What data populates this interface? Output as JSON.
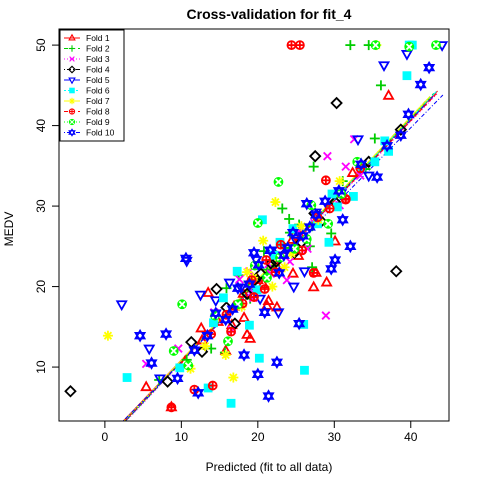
{
  "chart_data": {
    "type": "scatter",
    "title": "Cross-validation for fit_4",
    "xlabel": "Predicted (fit to all data)",
    "ylabel": "MEDV",
    "xlim": [
      -6,
      45
    ],
    "ylim": [
      3.3,
      52
    ],
    "xticks": [
      0,
      10,
      20,
      30,
      40
    ],
    "yticks": [
      10,
      20,
      30,
      40,
      50
    ],
    "grid": false,
    "legend_position": "top-left",
    "series": [
      {
        "name": "Fold 1",
        "color": "#ff0000",
        "marker": "triangle-up",
        "line": "solid",
        "fitline": [
          [
            2.4,
            3.3
          ],
          [
            43.5,
            44.3
          ]
        ],
        "points": [
          [
            15.8,
            12
          ],
          [
            18.6,
            14
          ],
          [
            21.2,
            17.6
          ],
          [
            27.6,
            21.7
          ],
          [
            29,
            20.5
          ],
          [
            30.1,
            25.6
          ],
          [
            12.7,
            13.3
          ],
          [
            16.6,
            15.2
          ],
          [
            22.6,
            22.3
          ],
          [
            10.5,
            10.7
          ],
          [
            5.4,
            7.5
          ],
          [
            8.7,
            5
          ],
          [
            19.2,
            21.1
          ],
          [
            25.6,
            26.2
          ],
          [
            13.5,
            19.2
          ],
          [
            20,
            20.8
          ],
          [
            24.5,
            25.8
          ],
          [
            37.1,
            43.7
          ],
          [
            32.4,
            34.1
          ],
          [
            25.3,
            23.8
          ],
          [
            16.9,
            17.5
          ],
          [
            20.7,
            20.3
          ],
          [
            18.1,
            19.1
          ],
          [
            12.6,
            14.8
          ],
          [
            27.3,
            19.9
          ],
          [
            22.5,
            17.4
          ],
          [
            19,
            13.5
          ],
          [
            24.6,
            21.6
          ],
          [
            21.4,
            18.2
          ],
          [
            14.8,
            15.6
          ],
          [
            18.2,
            16.1
          ]
        ]
      },
      {
        "name": "Fold 2",
        "color": "#00cd00",
        "marker": "plus",
        "line": "dashed",
        "fitline": [
          [
            2.6,
            3.3
          ],
          [
            43,
            44
          ]
        ],
        "points": [
          [
            32.1,
            50
          ],
          [
            34.5,
            50
          ],
          [
            36.1,
            45
          ],
          [
            7.1,
            8.4
          ],
          [
            27.3,
            34.9
          ],
          [
            23.2,
            29.7
          ],
          [
            24.2,
            26.7
          ],
          [
            22.1,
            22.6
          ],
          [
            25.4,
            27.7
          ],
          [
            17.5,
            21.4
          ],
          [
            20.8,
            24.4
          ],
          [
            31.1,
            33.1
          ],
          [
            26.8,
            25
          ],
          [
            10.7,
            10.9
          ],
          [
            15.9,
            19.8
          ],
          [
            18.8,
            20.6
          ],
          [
            13.9,
            12.3
          ],
          [
            27.1,
            22.4
          ],
          [
            35.3,
            38.4
          ],
          [
            24.1,
            28.4
          ],
          [
            21.2,
            22.1
          ],
          [
            19,
            18.5
          ],
          [
            29.6,
            26.6
          ],
          [
            34.1,
            34.6
          ],
          [
            15.7,
            11.8
          ],
          [
            23.6,
            24.8
          ],
          [
            27.1,
            27.5
          ]
        ]
      },
      {
        "name": "Fold 3",
        "color": "#ff00ff",
        "marker": "cross",
        "line": "dotted",
        "fitline": [
          [
            2.8,
            3.3
          ],
          [
            43.5,
            44
          ]
        ],
        "points": [
          [
            28.9,
            16.4
          ],
          [
            32.6,
            38.3
          ],
          [
            31.5,
            34.9
          ],
          [
            29.1,
            36.2
          ],
          [
            24.2,
            23.1
          ],
          [
            26.5,
            24.7
          ],
          [
            19.2,
            19.3
          ],
          [
            21.7,
            21.6
          ],
          [
            5.4,
            10.4
          ],
          [
            9.6,
            12.3
          ],
          [
            18.9,
            21.9
          ],
          [
            23.8,
            20.8
          ],
          [
            30.7,
            30.1
          ],
          [
            14.3,
            16.8
          ],
          [
            25.3,
            26.8
          ],
          [
            19.4,
            18.6
          ],
          [
            27.4,
            27.9
          ],
          [
            16.6,
            14.6
          ],
          [
            17.6,
            20.9
          ],
          [
            21.4,
            22.8
          ],
          [
            33.4,
            33.8
          ]
        ]
      },
      {
        "name": "Fold 4",
        "color": "#000000",
        "marker": "diamond",
        "line": "dotdash",
        "fitline": [
          [
            2.6,
            3.3
          ],
          [
            42.5,
            43.6
          ]
        ],
        "points": [
          [
            -4.5,
            7
          ],
          [
            38.1,
            21.9
          ],
          [
            30.3,
            42.8
          ],
          [
            27.5,
            36.2
          ],
          [
            38.7,
            39.5
          ],
          [
            14.6,
            19.7
          ],
          [
            20.4,
            21.6
          ],
          [
            22.8,
            24.6
          ],
          [
            27.4,
            29.1
          ],
          [
            34.5,
            35.5
          ],
          [
            18.6,
            19.1
          ],
          [
            8.2,
            8.2
          ],
          [
            12.7,
            11.9
          ],
          [
            17,
            15.4
          ],
          [
            22.4,
            23.1
          ],
          [
            25.7,
            25.5
          ],
          [
            30.1,
            30.5
          ],
          [
            15.9,
            17.4
          ],
          [
            19.6,
            20.8
          ],
          [
            21.7,
            22.9
          ],
          [
            24.8,
            24.2
          ],
          [
            28.3,
            28.1
          ],
          [
            11.3,
            13.1
          ]
        ]
      },
      {
        "name": "Fold 5",
        "color": "#0000ff",
        "marker": "triangle-down",
        "line": "longdash",
        "fitline": [
          [
            2.7,
            3.3
          ],
          [
            43,
            43.7
          ]
        ],
        "points": [
          [
            2.2,
            17.8
          ],
          [
            44.1,
            50
          ],
          [
            39.5,
            48.9
          ],
          [
            36.5,
            47.5
          ],
          [
            33.1,
            38.3
          ],
          [
            10.7,
            23.2
          ],
          [
            24.7,
            20
          ],
          [
            20.3,
            18.5
          ],
          [
            7.2,
            8.6
          ],
          [
            12.5,
            19
          ],
          [
            26.1,
            21.9
          ],
          [
            14.5,
            18.3
          ],
          [
            30.9,
            31.6
          ],
          [
            21.8,
            24.5
          ],
          [
            17.8,
            19.9
          ],
          [
            27.6,
            29.2
          ],
          [
            5.8,
            12.3
          ],
          [
            22.7,
            16.8
          ],
          [
            16.3,
            20.5
          ],
          [
            34.5,
            33.8
          ],
          [
            19.8,
            23.3
          ],
          [
            25,
            25.7
          ]
        ]
      },
      {
        "name": "Fold 6",
        "color": "#00ffff",
        "marker": "square",
        "line": "twodash",
        "fitline": [
          [
            2.5,
            3.3
          ],
          [
            43.5,
            44.4
          ]
        ],
        "points": [
          [
            2.9,
            8.7
          ],
          [
            13.5,
            7.4
          ],
          [
            16.5,
            5.5
          ],
          [
            20.2,
            11.1
          ],
          [
            26.1,
            9.6
          ],
          [
            29.7,
            31.5
          ],
          [
            32.5,
            31.2
          ],
          [
            35.3,
            35.5
          ],
          [
            36.6,
            38.1
          ],
          [
            39.5,
            46.2
          ],
          [
            40.2,
            50
          ],
          [
            39.8,
            50
          ],
          [
            26,
            15.3
          ],
          [
            20.6,
            28.3
          ],
          [
            22.9,
            25.5
          ],
          [
            17.3,
            21.9
          ],
          [
            29.3,
            25.5
          ],
          [
            24.6,
            27.2
          ],
          [
            14.2,
            15.5
          ],
          [
            19.9,
            19.6
          ],
          [
            33.5,
            34.9
          ],
          [
            9.8,
            9.9
          ],
          [
            15.5,
            18.6
          ],
          [
            27.8,
            27.8
          ],
          [
            22.1,
            23.9
          ],
          [
            37.1,
            36.8
          ],
          [
            18.9,
            15.2
          ],
          [
            30.4,
            29.9
          ]
        ]
      },
      {
        "name": "Fold 7",
        "color": "#ffff00",
        "marker": "asterisk",
        "line": "solid",
        "fitline": [
          [
            2.5,
            3.3
          ],
          [
            42.5,
            43.6
          ]
        ],
        "points": [
          [
            0.4,
            13.9
          ],
          [
            35.5,
            50
          ],
          [
            22.3,
            30.5
          ],
          [
            20.7,
            25.7
          ],
          [
            16.8,
            8.7
          ],
          [
            15.8,
            11.5
          ],
          [
            19.4,
            21.1
          ],
          [
            23.5,
            22.4
          ],
          [
            25.7,
            27.5
          ],
          [
            13.1,
            12.6
          ],
          [
            17.9,
            17.5
          ],
          [
            21.9,
            20
          ],
          [
            27.9,
            28.3
          ],
          [
            11.2,
            9.8
          ],
          [
            18.6,
            21.8
          ],
          [
            24.4,
            24.1
          ],
          [
            30.7,
            33.1
          ]
        ]
      },
      {
        "name": "Fold 8",
        "color": "#ff0000",
        "marker": "circle-plus",
        "line": "dashed",
        "fitline": [
          [
            2.6,
            3.3
          ],
          [
            43.5,
            44.1
          ]
        ],
        "points": [
          [
            29.4,
            29.7
          ],
          [
            31.5,
            30.8
          ],
          [
            33.4,
            34.7
          ],
          [
            25.5,
            50
          ],
          [
            24.4,
            50
          ],
          [
            27.3,
            21.7
          ],
          [
            19.2,
            20.8
          ],
          [
            21.1,
            23.3
          ],
          [
            16.5,
            14.4
          ],
          [
            11.7,
            7.2
          ],
          [
            8.7,
            5
          ],
          [
            14.1,
            7.7
          ],
          [
            18,
            17.9
          ],
          [
            23,
            25.2
          ],
          [
            27.8,
            28.6
          ],
          [
            20.9,
            19.7
          ],
          [
            13.9,
            14.1
          ],
          [
            28.9,
            33.2
          ],
          [
            31.5,
            30.9
          ],
          [
            25.8,
            24.5
          ],
          [
            22.3,
            21.8
          ],
          [
            15.9,
            16.5
          ],
          [
            19.5,
            18.7
          ]
        ]
      },
      {
        "name": "Fold 9",
        "color": "#00ff00",
        "marker": "circle-cross",
        "line": "dotted",
        "fitline": [
          [
            2.7,
            3.3
          ],
          [
            42.8,
            43.7
          ]
        ],
        "points": [
          [
            22.7,
            33
          ],
          [
            20,
            27.9
          ],
          [
            27,
            30.1
          ],
          [
            10.1,
            17.8
          ],
          [
            35.4,
            50
          ],
          [
            39.8,
            49.8
          ],
          [
            43.3,
            50
          ],
          [
            10.9,
            10.2
          ],
          [
            9,
            12
          ],
          [
            17.4,
            17.8
          ],
          [
            21.2,
            21.1
          ],
          [
            24.8,
            24.7
          ],
          [
            29.2,
            27.8
          ],
          [
            14.4,
            16.4
          ],
          [
            19.6,
            22.6
          ],
          [
            26.4,
            25.9
          ],
          [
            16.1,
            13.2
          ],
          [
            22.9,
            23.6
          ],
          [
            30.9,
            31.5
          ],
          [
            33,
            35.5
          ]
        ]
      },
      {
        "name": "Fold 10",
        "color": "#0000ff",
        "marker": "star-of-david",
        "line": "dotdash",
        "fitline": [
          [
            2.4,
            3.3
          ],
          [
            44.2,
            43.8
          ]
        ],
        "points": [
          [
            10.6,
            23.5
          ],
          [
            8,
            14.1
          ],
          [
            4.6,
            13.9
          ],
          [
            21.4,
            6.4
          ],
          [
            12.2,
            6.8
          ],
          [
            9.5,
            8.6
          ],
          [
            20,
            9.1
          ],
          [
            22.5,
            10.6
          ],
          [
            25.4,
            15.4
          ],
          [
            20.9,
            16.8
          ],
          [
            29.6,
            22.2
          ],
          [
            32.1,
            25
          ],
          [
            38.7,
            38.8
          ],
          [
            39.7,
            41.4
          ],
          [
            42.4,
            47.2
          ],
          [
            41.3,
            45.1
          ],
          [
            28.8,
            30.6
          ],
          [
            30.6,
            31.9
          ],
          [
            33.5,
            35.2
          ],
          [
            35.6,
            33.6
          ],
          [
            36.9,
            37.5
          ],
          [
            24.6,
            26.7
          ],
          [
            23.4,
            23.9
          ],
          [
            22.8,
            21.7
          ],
          [
            26.8,
            27.4
          ],
          [
            14.5,
            16.7
          ],
          [
            17.4,
            19.8
          ],
          [
            18.9,
            20.3
          ],
          [
            16.7,
            17.2
          ],
          [
            20.1,
            22.7
          ],
          [
            27.6,
            28.9
          ],
          [
            31.1,
            28.3
          ],
          [
            11.7,
            12.1
          ],
          [
            6.1,
            10.5
          ],
          [
            18.2,
            11.5
          ],
          [
            23.9,
            24.8
          ],
          [
            19.5,
            24.2
          ],
          [
            15.8,
            15.9
          ],
          [
            13.4,
            13.9
          ],
          [
            25.9,
            26.3
          ],
          [
            21.6,
            24.5
          ],
          [
            26.4,
            30.3
          ],
          [
            30.1,
            23.3
          ]
        ]
      }
    ]
  }
}
